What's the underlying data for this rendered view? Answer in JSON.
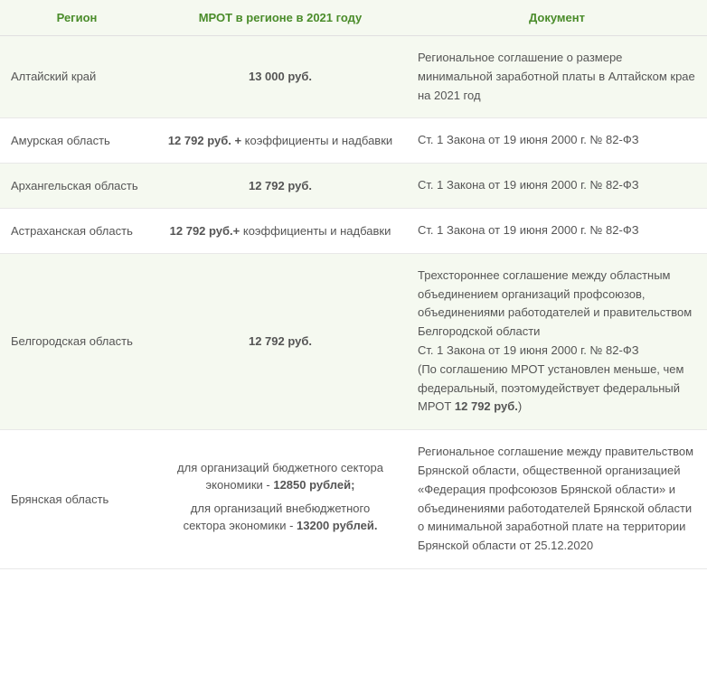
{
  "table": {
    "columns": {
      "region": "Регион",
      "mrot": "МРОТ в регионе в 2021 году",
      "doc": "Документ"
    },
    "header_color": "#4a8c2a",
    "alt_bg": "#f5f9f0",
    "border_color": "#e8e8e8",
    "text_color": "#555555",
    "rows": [
      {
        "region": "Алтайский край",
        "mrot_bold": "13 000 руб.",
        "mrot_plain": "",
        "doc": "Региональное соглашение о размере минимальной заработной платы в Алтайском крае на 2021 год",
        "alt": true
      },
      {
        "region": "Амурская область",
        "mrot_bold": "12 792 руб. + ",
        "mrot_plain": "коэффициенты и надбавки",
        "doc": "Ст. 1 Закона от 19 июня 2000 г. № 82-ФЗ",
        "alt": false
      },
      {
        "region": "Архангельская область",
        "mrot_bold": "12 792 руб.",
        "mrot_plain": "",
        "doc": "Ст. 1 Закона от 19 июня 2000 г. № 82-ФЗ",
        "alt": true
      },
      {
        "region": "Астраханская область",
        "mrot_bold": "12 792 руб.+ ",
        "mrot_plain": "коэффициенты и надбавки",
        "doc": "Ст. 1 Закона от 19 июня 2000 г. № 82-ФЗ",
        "alt": false
      },
      {
        "region": "Белгородская область",
        "mrot_bold": "12 792 руб.",
        "mrot_plain": "",
        "doc_parts": {
          "p1": "Трехстороннее соглашение между областным объединением организаций профсоюзов, объединениями работодателей и правительством Белгородской области",
          "p2": "Ст. 1 Закона от 19 июня 2000 г. № 82-ФЗ",
          "p3_a": "(По соглашению МРОТ установлен меньше, чем федеральный, поэтомудействует федеральный МРОТ ",
          "p3_b": "12 792 руб.",
          "p3_c": ")"
        },
        "alt": true
      },
      {
        "region": "Брянская область",
        "mrot_lines": {
          "l1_a": "для организаций бюджетного сектора экономики - ",
          "l1_b": "12850 рублей;",
          "l2_a": "для организаций внебюджетного сектора экономики - ",
          "l2_b": "13200 рублей."
        },
        "doc": "Региональное соглашение между правительством Брянской области, общественной организацией «Федерация профсоюзов Брянской области» и объединениями работодателей Брянской области о минимальной заработной плате на территории Брянской области от 25.12.2020",
        "alt": false
      }
    ]
  }
}
